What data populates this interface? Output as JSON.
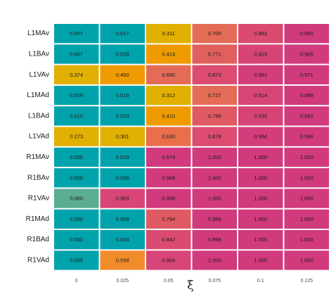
{
  "chart_data": {
    "type": "heatmap",
    "xlabel": "ξ",
    "ylabel": "",
    "x_categories": [
      "0",
      "0.025",
      "0.05",
      "0.075",
      "0.1",
      "0.125"
    ],
    "y_categories": [
      "L1MAv",
      "L1BAv",
      "L1VAv",
      "L1MAd",
      "L1BAd",
      "L1VAd",
      "R1MAv",
      "R1BAv",
      "R1VAv",
      "R1MAd",
      "R1BAd",
      "R1VAd"
    ],
    "values": [
      [
        "0.007",
        "0.017",
        "0.311",
        "0.700",
        "0.882",
        "0.960"
      ],
      [
        "0.007",
        "0.028",
        "0.414",
        "0.771",
        "0.915",
        "0.965"
      ],
      [
        "0.374",
        "0.450",
        "0.690",
        "0.873",
        "0.951",
        "0.971"
      ],
      [
        "0.009",
        "0.018",
        "0.312",
        "0.727",
        "0.914",
        "0.988"
      ],
      [
        "0.010",
        "0.029",
        "0.410",
        "0.798",
        "0.935",
        "0.992"
      ],
      [
        "0.273",
        "0.301",
        "0.630",
        "0.878",
        "0.964",
        "0.996"
      ],
      [
        "0.000",
        "0.018",
        "0.979",
        "1.000",
        "1.000",
        "1.000"
      ],
      [
        "0.000",
        "0.036",
        "0.988",
        "1.000",
        "1.000",
        "1.000"
      ],
      [
        "0.060",
        "0.903",
        "0.999",
        "1.000",
        "1.000",
        "1.000"
      ],
      [
        "0.000",
        "0.008",
        "0.794",
        "0.989",
        "1.000",
        "1.000"
      ],
      [
        "0.000",
        "0.014",
        "0.842",
        "0.998",
        "1.000",
        "1.000"
      ],
      [
        "0.005",
        "0.598",
        "0.904",
        "1.000",
        "1.000",
        "1.000"
      ]
    ],
    "cell_colors": [
      [
        "#00a3ac",
        "#00a3ac",
        "#e1b000",
        "#e46c56",
        "#db4a71",
        "#d13a7d"
      ],
      [
        "#00a3ac",
        "#00a3ac",
        "#ef9b00",
        "#e25f5f",
        "#d74377",
        "#d13a7d"
      ],
      [
        "#e1b000",
        "#ef9b00",
        "#e46c56",
        "#dc4c70",
        "#d33d7b",
        "#d13a7d"
      ],
      [
        "#00a3ac",
        "#00a3ac",
        "#e1b000",
        "#e46c56",
        "#d84578",
        "#d13a7d"
      ],
      [
        "#00a3ac",
        "#00a3ac",
        "#ef9b00",
        "#e05a64",
        "#d74377",
        "#d13a7d"
      ],
      [
        "#e1b000",
        "#e1b000",
        "#e86e4c",
        "#dc4c70",
        "#d33d7b",
        "#d13a7d"
      ],
      [
        "#00a3ac",
        "#00a3ac",
        "#d13a7d",
        "#d13a7d",
        "#d13a7d",
        "#d13a7d"
      ],
      [
        "#00a3ac",
        "#00a3ac",
        "#d13a7d",
        "#d13a7d",
        "#d13a7d",
        "#d13a7d"
      ],
      [
        "#5aac93",
        "#d84578",
        "#d13a7d",
        "#d13a7d",
        "#d13a7d",
        "#d13a7d"
      ],
      [
        "#00a3ac",
        "#00a3ac",
        "#e05a64",
        "#d13a7d",
        "#d13a7d",
        "#d13a7d"
      ],
      [
        "#00a3ac",
        "#00a3ac",
        "#db4a71",
        "#d13a7d",
        "#d13a7d",
        "#d13a7d"
      ],
      [
        "#00a3ac",
        "#f18c2a",
        "#d84578",
        "#d13a7d",
        "#d13a7d",
        "#d13a7d"
      ]
    ],
    "grid": false,
    "legend": "none"
  }
}
